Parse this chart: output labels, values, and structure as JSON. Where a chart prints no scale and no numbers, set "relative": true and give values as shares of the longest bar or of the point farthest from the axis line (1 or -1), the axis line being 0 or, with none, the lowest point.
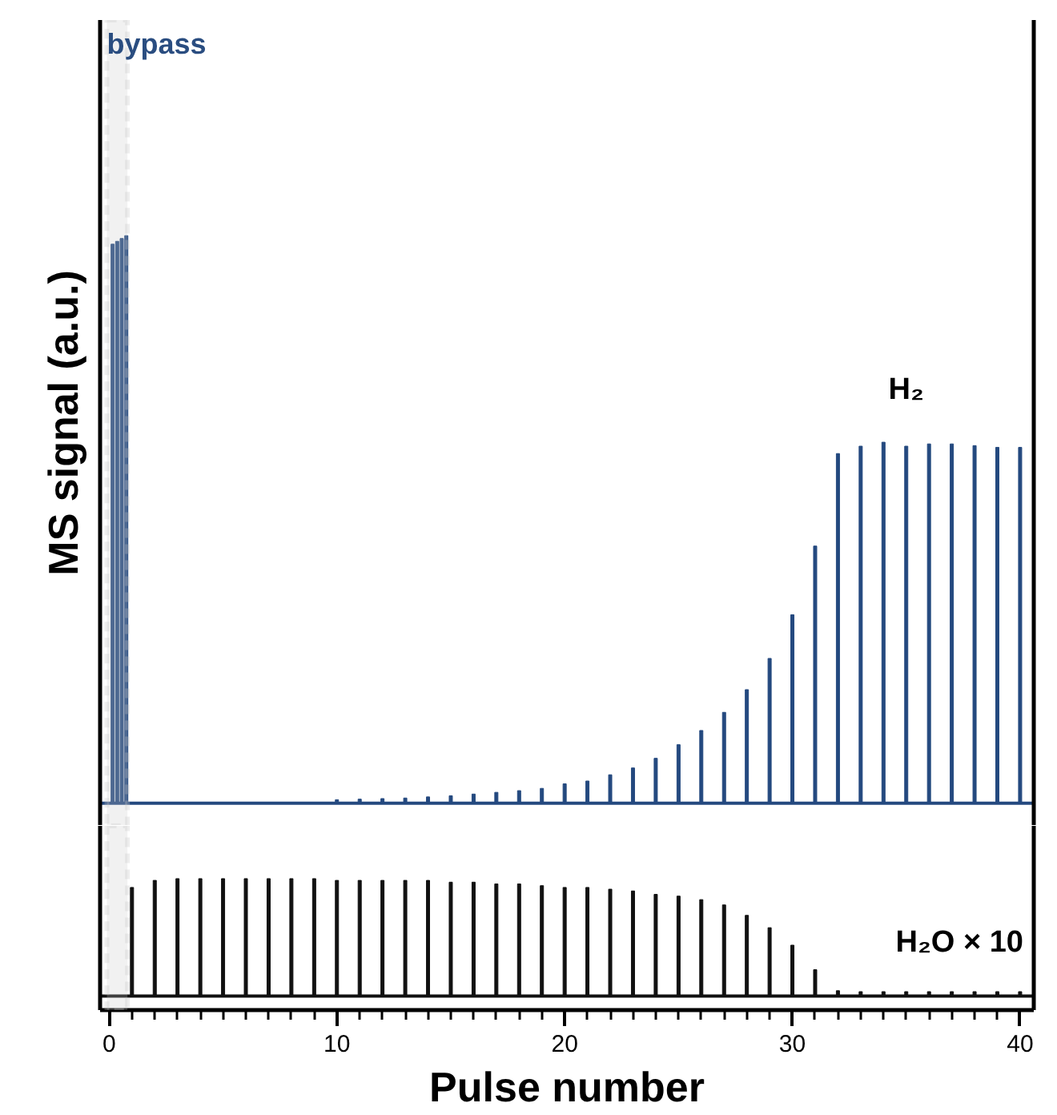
{
  "chart_data": [
    {
      "type": "bar",
      "relative": true,
      "ylabel": "MS signal (a.u.)",
      "tick_labels": false,
      "xlim": [
        -0.4,
        40.6
      ],
      "bands": [
        {
          "axis": "x",
          "from": -0.1,
          "to": 0.8,
          "label": "bypass",
          "color": "#c8c8c8"
        }
      ],
      "series": [
        {
          "name": "H₂",
          "color": "#24497f",
          "x": [
            0.15,
            0.35,
            0.55,
            0.75,
            1,
            2,
            3,
            4,
            5,
            6,
            7,
            8,
            9,
            10,
            11,
            12,
            13,
            14,
            15,
            16,
            17,
            18,
            19,
            20,
            21,
            22,
            23,
            24,
            25,
            26,
            27,
            28,
            29,
            30,
            31,
            32,
            33,
            34,
            35,
            36,
            37,
            38,
            39,
            40
          ],
          "values": [
            0.985,
            0.99,
            0.995,
            1.0,
            0,
            0,
            0,
            0,
            0,
            0,
            null,
            null,
            null,
            0.006,
            0.007,
            0.008,
            0.009,
            0.011,
            0.013,
            0.016,
            0.019,
            0.022,
            0.026,
            0.034,
            0.039,
            0.05,
            0.062,
            0.079,
            0.103,
            0.128,
            0.16,
            0.2,
            0.255,
            0.332,
            0.453,
            0.616,
            0.629,
            0.636,
            0.629,
            0.633,
            0.633,
            0.63,
            0.627,
            0.627
          ]
        }
      ]
    },
    {
      "type": "bar",
      "relative": true,
      "xlabel": "Pulse number",
      "tick_labels": "x",
      "xlim": [
        -0.4,
        40.6
      ],
      "xticks": [
        0,
        {
          "value": 1,
          "label": null
        },
        {
          "value": 2,
          "label": null
        },
        {
          "value": 3,
          "label": null
        },
        {
          "value": 4,
          "label": null
        },
        {
          "value": 5,
          "label": null
        },
        {
          "value": 6,
          "label": null
        },
        {
          "value": 7,
          "label": null
        },
        {
          "value": 8,
          "label": null
        },
        {
          "value": 9,
          "label": null
        },
        10,
        {
          "value": 11,
          "label": null
        },
        {
          "value": 12,
          "label": null
        },
        {
          "value": 13,
          "label": null
        },
        {
          "value": 14,
          "label": null
        },
        {
          "value": 15,
          "label": null
        },
        {
          "value": 16,
          "label": null
        },
        {
          "value": 17,
          "label": null
        },
        {
          "value": 18,
          "label": null
        },
        {
          "value": 19,
          "label": null
        },
        20,
        {
          "value": 21,
          "label": null
        },
        {
          "value": 22,
          "label": null
        },
        {
          "value": 23,
          "label": null
        },
        {
          "value": 24,
          "label": null
        },
        {
          "value": 25,
          "label": null
        },
        {
          "value": 26,
          "label": null
        },
        {
          "value": 27,
          "label": null
        },
        {
          "value": 28,
          "label": null
        },
        {
          "value": 29,
          "label": null
        },
        30,
        {
          "value": 31,
          "label": null
        },
        {
          "value": 32,
          "label": null
        },
        {
          "value": 33,
          "label": null
        },
        {
          "value": 34,
          "label": null
        },
        {
          "value": 35,
          "label": null
        },
        {
          "value": 36,
          "label": null
        },
        {
          "value": 37,
          "label": null
        },
        {
          "value": 38,
          "label": null
        },
        {
          "value": 39,
          "label": null
        },
        40
      ],
      "bands": [
        {
          "axis": "x",
          "from": -0.1,
          "to": 0.8,
          "color": "#c8c8c8"
        }
      ],
      "series": [
        {
          "name": "H₂O × 10",
          "color": "#111111",
          "x": [
            1,
            2,
            3,
            4,
            5,
            6,
            7,
            8,
            9,
            10,
            11,
            12,
            13,
            14,
            15,
            16,
            17,
            18,
            19,
            20,
            21,
            22,
            23,
            24,
            25,
            26,
            27,
            28,
            29,
            30,
            31,
            32,
            33,
            34,
            35,
            36,
            37,
            38,
            39,
            40
          ],
          "values": [
            0.925,
            0.985,
            1.0,
            1.0,
            1.0,
            1.0,
            1.0,
            1.0,
            1.0,
            0.985,
            0.985,
            0.985,
            0.985,
            0.985,
            0.97,
            0.97,
            0.955,
            0.955,
            0.94,
            0.925,
            0.925,
            0.91,
            0.895,
            0.866,
            0.851,
            0.821,
            0.776,
            0.687,
            0.582,
            0.433,
            0.224,
            0.045,
            0.037,
            0.037,
            0.037,
            0.037,
            0.037,
            0.037,
            0.037,
            0.037
          ]
        }
      ]
    }
  ]
}
